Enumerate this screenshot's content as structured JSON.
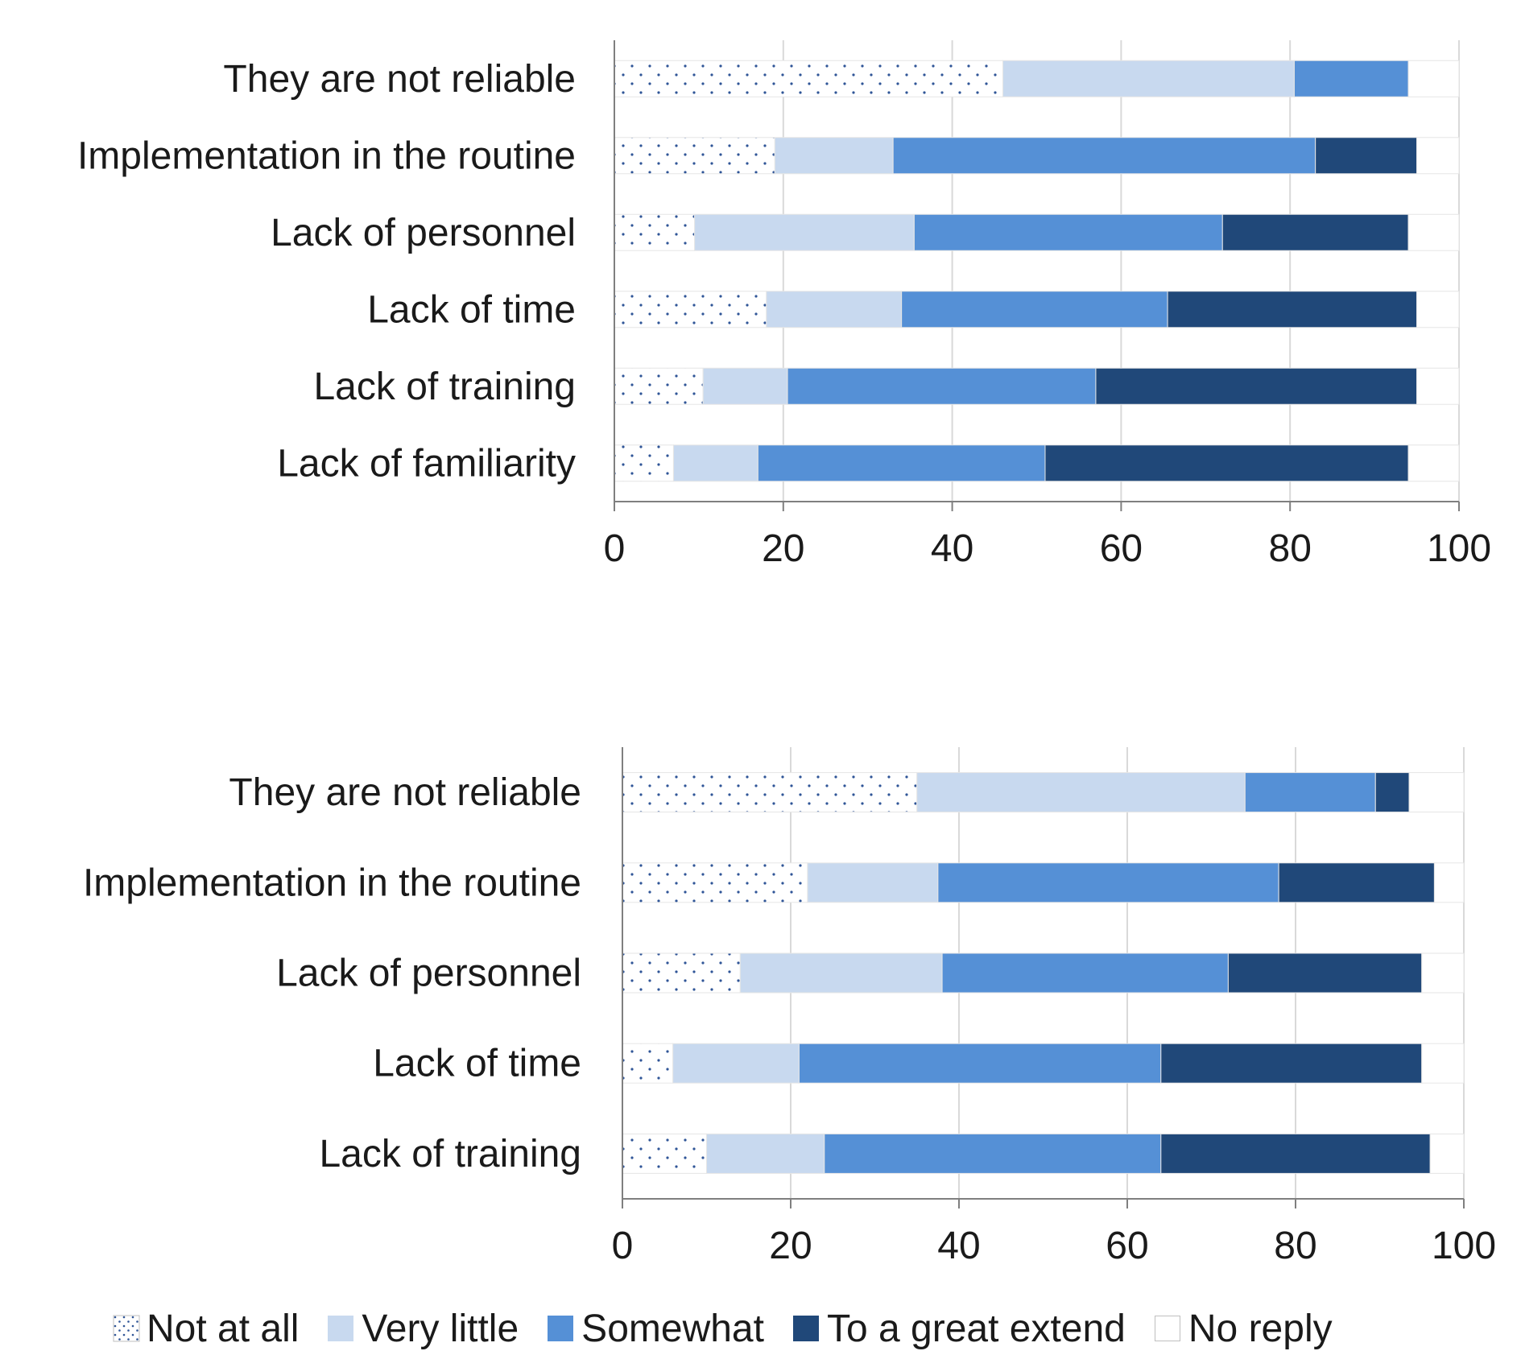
{
  "colors": {
    "not_at_all_fill": "#ffffff",
    "not_at_all_dot": "#2f5597",
    "very_little": "#c8d9ef",
    "somewhat": "#5590d6",
    "to_a_great_extend": "#204879",
    "no_reply": "#ffffff",
    "grid": "#d9d9d9",
    "axis": "#7f7f7f"
  },
  "legend": {
    "items": [
      {
        "key": "not_at_all",
        "label": "Not at all"
      },
      {
        "key": "very_little",
        "label": "Very little"
      },
      {
        "key": "somewhat",
        "label": "Somewhat"
      },
      {
        "key": "to_a_great_extend",
        "label": "To a great extend"
      },
      {
        "key": "no_reply",
        "label": "No reply"
      }
    ]
  },
  "chart_data": [
    {
      "type": "bar",
      "orientation": "horizontal",
      "stacked": true,
      "xlim": [
        0,
        100
      ],
      "xticks": [
        0,
        20,
        40,
        60,
        80,
        100
      ],
      "grid": true,
      "categories": [
        "They are not reliable",
        "Implementation in the routine",
        "Lack of personnel",
        "Lack of time",
        "Lack of training",
        "Lack of familiarity"
      ],
      "series": [
        {
          "name": "Not at all",
          "key": "not_at_all",
          "values": [
            46,
            19,
            9.5,
            18,
            10.5,
            7
          ]
        },
        {
          "name": "Very little",
          "key": "very_little",
          "values": [
            34.5,
            14,
            26,
            16,
            10,
            10
          ]
        },
        {
          "name": "Somewhat",
          "key": "somewhat",
          "values": [
            13.5,
            50,
            36.5,
            31.5,
            36.5,
            34
          ]
        },
        {
          "name": "To a great extend",
          "key": "to_a_great_extend",
          "values": [
            0,
            12,
            22,
            29.5,
            38,
            43
          ]
        },
        {
          "name": "No reply",
          "key": "no_reply",
          "values": [
            6,
            5,
            6,
            5,
            5,
            6
          ]
        }
      ]
    },
    {
      "type": "bar",
      "orientation": "horizontal",
      "stacked": true,
      "xlim": [
        0,
        100
      ],
      "xticks": [
        0,
        20,
        40,
        60,
        80,
        100
      ],
      "grid": true,
      "categories": [
        "They are not reliable",
        "Implementation in the routine",
        "Lack of personnel",
        "Lack of time",
        "Lack of training"
      ],
      "series": [
        {
          "name": "Not at all",
          "key": "not_at_all",
          "values": [
            35,
            22,
            14,
            6,
            10
          ]
        },
        {
          "name": "Very little",
          "key": "very_little",
          "values": [
            39,
            15.5,
            24,
            15,
            14
          ]
        },
        {
          "name": "Somewhat",
          "key": "somewhat",
          "values": [
            15.5,
            40.5,
            34,
            43,
            40
          ]
        },
        {
          "name": "To a great extend",
          "key": "to_a_great_extend",
          "values": [
            4,
            18.5,
            23,
            31,
            32
          ]
        },
        {
          "name": "No reply",
          "key": "no_reply",
          "values": [
            6.5,
            3.5,
            5,
            5,
            4
          ]
        }
      ]
    }
  ]
}
